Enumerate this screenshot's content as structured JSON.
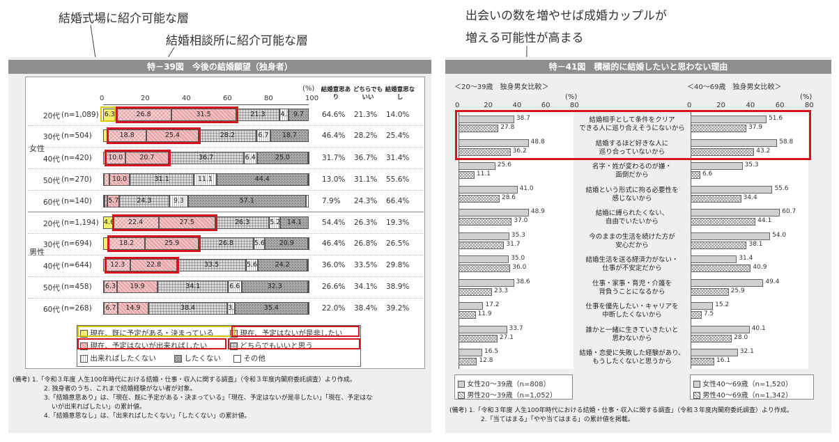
{
  "annotations": {
    "top1": "結婚式場に紹介可能な層",
    "top2": "結婚相談所に紹介可能な層",
    "right1": "出会いの数を増やせば成婚カップルが",
    "right2": "増える可能性が高まる"
  },
  "colors": {
    "yellow": "#f5ef6b",
    "red": "#d4141f",
    "redfill": "#eaa7aa",
    "gray": "#8e8e8e"
  },
  "left": {
    "title": "特－39図　今後の結婚願望（独身者）",
    "percent_unit": "(%)",
    "axis_ticks": [
      "0",
      "20",
      "40",
      "60",
      "80",
      "100"
    ],
    "col_heads": [
      "結婚意思あり",
      "どちらでもいい",
      "結婚意思なし"
    ],
    "groups": [
      "女性",
      "男性"
    ],
    "legend": [
      "現在、既に予定がある・決まっている",
      "現在、予定はないが是非したい",
      "現在、予定はないが出来ればしたい",
      "どちらでもいいと思う",
      "出来ればしたくない",
      "したくない",
      "その他"
    ],
    "notes": [
      "(備考) 1.「令和３年度 人生100年時代における結婚・仕事・収入に関する調査」（令和３年度内閣府委託調査）より作成。",
      "2. 独身者のうち、これまで結婚経験がない者が対象。",
      "3.「結婚意思あり」は、「現在、既に予定がある・決まっている」「現在、予定はないが是非したい」「現在、予定はな",
      "いが出来ればしたい」の累計値。",
      "4.「結婚意思なし」は、「出来ればしたくない」「したくない」の累計値。"
    ]
  },
  "chart_data": [
    {
      "type": "bar",
      "stacked": true,
      "horizontal": true,
      "xlim": [
        0,
        100
      ],
      "series_names": [
        "現在、既に予定がある・決まっている",
        "現在、予定はないが是非したい",
        "現在、予定はないが出来ればしたい",
        "どちらでもいいと思う",
        "出来ればしたくない",
        "したくない",
        "その他"
      ],
      "rows": [
        {
          "label": "20代",
          "n": "(n=1,089)",
          "values": [
            6.3,
            26.8,
            31.5,
            21.3,
            4.3,
            9.7,
            0
          ],
          "labels": [
            "6.3",
            "26.8",
            "31.5",
            "21.3",
            "4.3",
            "9.7",
            ""
          ],
          "summary": [
            "64.6%",
            "21.3%",
            "14.0%"
          ],
          "highlight": true
        },
        {
          "label": "30代",
          "n": "(n=504)",
          "values": [
            2.2,
            18.8,
            25.4,
            28.2,
            6.7,
            18.7,
            0
          ],
          "labels": [
            "2.2",
            "18.8",
            "25.4",
            "28.2",
            "6.7",
            "18.7",
            ""
          ],
          "summary": [
            "46.4%",
            "28.2%",
            "25.4%"
          ],
          "highlight": true
        },
        {
          "label": "40代",
          "n": "(n=420)",
          "values": [
            1.0,
            10.0,
            20.7,
            36.7,
            6.4,
            25.0,
            0.2
          ],
          "labels": [
            "1.0",
            "10.0",
            "20.7",
            "36.7",
            "6.4",
            "25.0",
            "0.2"
          ],
          "summary": [
            "31.7%",
            "36.7%",
            "31.4%"
          ],
          "highlight": true
        },
        {
          "label": "50代",
          "n": "(n=270)",
          "values": [
            0.4,
            2.6,
            10.0,
            31.1,
            11.1,
            44.4,
            0.4
          ],
          "labels": [
            "0.4",
            "2.6",
            "10.0",
            "31.1",
            "11.1",
            "44.4",
            "0.4"
          ],
          "summary": [
            "13.0%",
            "31.1%",
            "55.6%"
          ],
          "highlight": false
        },
        {
          "label": "60代",
          "n": "(n=140)",
          "values": [
            0.7,
            1.4,
            5.7,
            24.3,
            9.3,
            57.1,
            1.4
          ],
          "labels": [
            "0.7",
            "",
            "5.7",
            "24.3",
            "9.3",
            "57.1",
            "1.4"
          ],
          "summary": [
            "7.9%",
            "24.3%",
            "66.4%"
          ],
          "highlight": false
        },
        {
          "label": "20代",
          "n": "(n=1,194)",
          "values": [
            4.6,
            22.4,
            27.5,
            26.3,
            5.2,
            14.1,
            0
          ],
          "labels": [
            "4.6",
            "22.4",
            "27.5",
            "26.3",
            "5.2",
            "14.1",
            ""
          ],
          "summary": [
            "54.4%",
            "26.3%",
            "19.3%"
          ],
          "highlight": true
        },
        {
          "label": "30代",
          "n": "(n=694)",
          "values": [
            2.3,
            18.2,
            25.9,
            26.8,
            5.6,
            20.9,
            0.3
          ],
          "labels": [
            "2.3",
            "18.2",
            "25.9",
            "26.8",
            "5.6",
            "20.9",
            "0.3"
          ],
          "summary": [
            "46.4%",
            "26.8%",
            "26.5%"
          ],
          "highlight": true
        },
        {
          "label": "40代",
          "n": "(n=644)",
          "values": [
            0.9,
            12.3,
            22.8,
            33.5,
            5.6,
            24.2,
            0.6
          ],
          "labels": [
            "0.9",
            "12.3",
            "22.8",
            "33.5",
            "5.6",
            "24.2",
            "0.6"
          ],
          "summary": [
            "36.0%",
            "33.5%",
            "29.8%"
          ],
          "highlight": true
        },
        {
          "label": "50代",
          "n": "(n=458)",
          "values": [
            0.4,
            6.3,
            19.9,
            34.1,
            6.6,
            32.3,
            0.4
          ],
          "labels": [
            "0.4",
            "6.3",
            "19.9",
            "34.1",
            "6.6",
            "32.3",
            "0.4"
          ],
          "summary": [
            "26.6%",
            "34.1%",
            "38.9%"
          ],
          "highlight": false
        },
        {
          "label": "60代",
          "n": "(n=268)",
          "values": [
            0.4,
            6.7,
            14.9,
            38.4,
            3.7,
            35.4,
            0.4
          ],
          "labels": [
            "0.4",
            "6.7",
            "14.9",
            "38.4",
            "3.7",
            "35.4",
            "0.4"
          ],
          "summary": [
            "22.0%",
            "38.4%",
            "39.2%"
          ],
          "highlight": false
        }
      ]
    },
    {
      "type": "bar",
      "horizontal": true,
      "title": "特－41図　積極的に結婚したいと思わない理由",
      "left_sub": "＜20～39歳　独身男女比較＞",
      "right_sub": "＜40～69歳　独身男女比較＞",
      "xlim": [
        0,
        80
      ],
      "ticks": [
        "0",
        "20",
        "40",
        "60",
        "80"
      ],
      "unit": "(%)",
      "legend_left": [
        "女性20～39歳（n=808）",
        "男性20～39歳（n=1,052）"
      ],
      "legend_right": [
        "女性40～69歳（n=1,520）",
        "男性40～69歳（n=1,342）"
      ],
      "reasons": [
        {
          "text": [
            "結婚相手として条件をクリア",
            "できる人に巡り合えそうにないから"
          ],
          "y_f": 38.7,
          "y_m": 27.8,
          "o_f": 51.6,
          "o_m": 37.9
        },
        {
          "text": [
            "結婚するほど好きな人に",
            "巡り合っていないから"
          ],
          "y_f": 48.8,
          "y_m": 36.2,
          "o_f": 58.8,
          "o_m": 43.2
        },
        {
          "text": [
            "名字・姓が変わるのが嫌・",
            "面倒だから"
          ],
          "y_f": 25.6,
          "y_m": 11.1,
          "o_f": 35.3,
          "o_m": 6.6
        },
        {
          "text": [
            "結婚という形式に拘る必要性を",
            "感じないから"
          ],
          "y_f": 41.0,
          "y_m": 28.6,
          "o_f": 55.6,
          "o_m": 34.4
        },
        {
          "text": [
            "結婚に縛られたくない、",
            "自由でいたいから"
          ],
          "y_f": 48.9,
          "y_m": 37.0,
          "o_f": 60.7,
          "o_m": 44.1
        },
        {
          "text": [
            "今のままの生活を続けた方が",
            "安心だから"
          ],
          "y_f": 35.3,
          "y_m": 31.7,
          "o_f": 54.0,
          "o_m": 38.1
        },
        {
          "text": [
            "結婚生活を送る経済力がない・",
            "仕事が不安定だから"
          ],
          "y_f": 35.0,
          "y_m": 36.0,
          "o_f": 31.4,
          "o_m": 40.9
        },
        {
          "text": [
            "仕事・家事・育児・介護を",
            "背負うことになるから"
          ],
          "y_f": 38.6,
          "y_m": 23.3,
          "o_f": 49.4,
          "o_m": 25.9
        },
        {
          "text": [
            "仕事を優先したい・キャリアを",
            "中断したくないから"
          ],
          "y_f": 17.2,
          "y_m": 11.9,
          "o_f": 15.2,
          "o_m": 7.5
        },
        {
          "text": [
            "誰かと一緒に生きていきたいと",
            "思わないから"
          ],
          "y_f": 33.7,
          "y_m": 27.1,
          "o_f": 40.1,
          "o_m": 28.0
        },
        {
          "text": [
            "結婚・恋愛に失敗した経験があり、",
            "もうしたくないと思うから"
          ],
          "y_f": 16.5,
          "y_m": 12.8,
          "o_f": 32.1,
          "o_m": 16.1
        }
      ],
      "notes": [
        "(備考) 1.「令和３年度 人生100年時代における結婚・仕事・収入に関する調査」（令和３年度内閣府委託調査）より作成。",
        "2.「当てはまる」「やや当てはまる」の累計値を掲載。"
      ]
    }
  ]
}
